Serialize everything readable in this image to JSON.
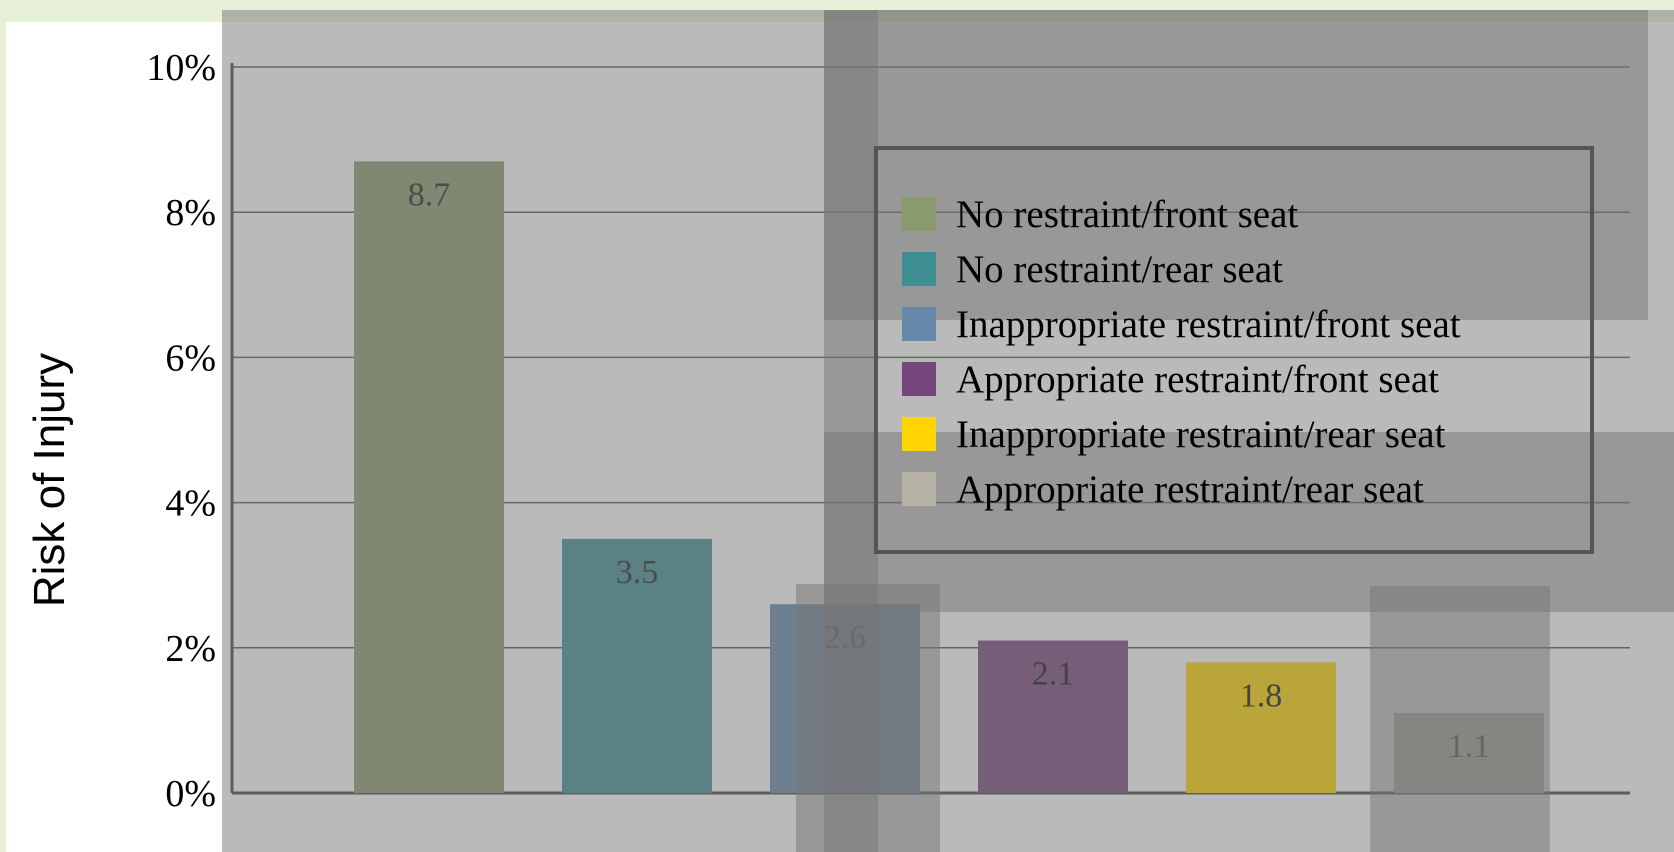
{
  "chart_data": {
    "type": "bar",
    "title": "",
    "xlabel": "",
    "ylabel": "Risk of Injury",
    "ylim": [
      0,
      10
    ],
    "yticks": [
      0,
      2,
      4,
      6,
      8,
      10
    ],
    "ytick_labels": [
      "0%",
      "2%",
      "4%",
      "6%",
      "8%",
      "10%"
    ],
    "grid": true,
    "legend_position": "top-right",
    "categories": [
      "No restraint/front seat",
      "No restraint/rear seat",
      "Inappropriate restraint/front seat",
      "Appropriate restraint/front seat",
      "Inappropriate restraint/rear seat",
      "Appropriate restraint/rear seat"
    ],
    "values": [
      8.7,
      3.5,
      2.6,
      2.1,
      1.8,
      1.1
    ],
    "value_labels": [
      "8.7",
      "3.5",
      "2.6",
      "2.1",
      "1.8",
      "1.1"
    ],
    "colors": [
      "#8a9a6c",
      "#3f8e93",
      "#6689ab",
      "#76477c",
      "#ffd400",
      "#b6b3a6"
    ],
    "value_label_colors": [
      "#222222",
      "#222222",
      "#222222",
      "#111111",
      "#111111",
      "#333333"
    ]
  }
}
